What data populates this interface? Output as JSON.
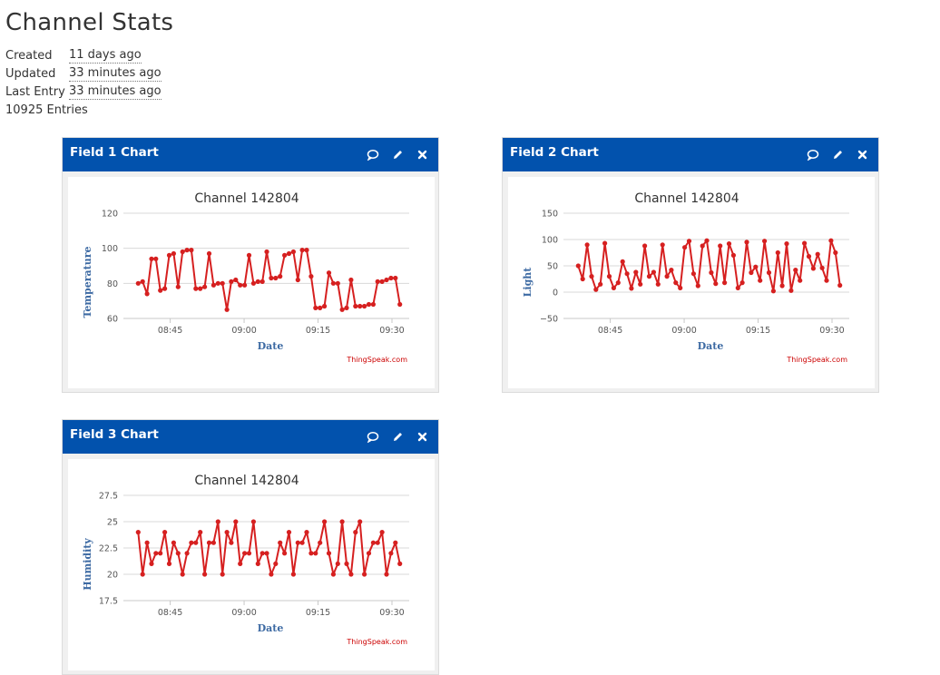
{
  "page": {
    "title": "Channel Stats",
    "created_label": "Created",
    "created_value": "11 days ago",
    "updated_label": "Updated",
    "updated_value": "33 minutes ago",
    "last_entry_label": "Last Entry",
    "last_entry_value": "33 minutes ago",
    "entries": "10925 Entries"
  },
  "colors": {
    "header": "#0252ad",
    "series": "#d62020",
    "credit": "#cc0000",
    "axis_title": "#3d6aa3"
  },
  "icons": [
    "comment-icon",
    "pencil-icon",
    "close-icon"
  ],
  "chart_data": [
    {
      "type": "line",
      "panel_title": "Field 1 Chart",
      "title": "Channel 142804",
      "xlabel": "Date",
      "ylabel": "Temperature",
      "credit": "ThingSpeak.com",
      "ylim": [
        60,
        120
      ],
      "yticks": [
        60,
        80,
        100,
        120
      ],
      "ytick_labels": [
        "60",
        "80",
        "100",
        "120"
      ],
      "xlim_minutes": [
        515.5,
        573.5
      ],
      "xticks": [
        525,
        540,
        555,
        570
      ],
      "xtick_labels": [
        "08:45",
        "09:00",
        "09:15",
        "09:30"
      ],
      "values": [
        80,
        81,
        74,
        94,
        94,
        76,
        77,
        96,
        97,
        78,
        98,
        99,
        99,
        77,
        77,
        78,
        97,
        79,
        80,
        80,
        65,
        81,
        82,
        79,
        79,
        96,
        80,
        81,
        81,
        98,
        83,
        83,
        84,
        96,
        97,
        98,
        82,
        99,
        99,
        84,
        66,
        66,
        67,
        86,
        80,
        80,
        65,
        66,
        82,
        67,
        67,
        67,
        68,
        68,
        81,
        81,
        82,
        83,
        83,
        68
      ]
    },
    {
      "type": "line",
      "panel_title": "Field 2 Chart",
      "title": "Channel 142804",
      "xlabel": "Date",
      "ylabel": "Light",
      "credit": "ThingSpeak.com",
      "ylim": [
        -50,
        150
      ],
      "yticks": [
        -50,
        0,
        50,
        100,
        150
      ],
      "ytick_labels": [
        "−50",
        "0",
        "50",
        "100",
        "150"
      ],
      "xlim_minutes": [
        515.5,
        573.5
      ],
      "xticks": [
        525,
        540,
        555,
        570
      ],
      "xtick_labels": [
        "08:45",
        "09:00",
        "09:15",
        "09:30"
      ],
      "values": [
        50,
        25,
        90,
        30,
        5,
        15,
        93,
        30,
        8,
        18,
        58,
        35,
        7,
        38,
        15,
        88,
        30,
        38,
        15,
        90,
        30,
        42,
        18,
        8,
        85,
        97,
        35,
        12,
        88,
        98,
        37,
        16,
        88,
        18,
        92,
        70,
        8,
        18,
        95,
        37,
        48,
        22,
        97,
        37,
        2,
        75,
        12,
        92,
        3,
        42,
        22,
        93,
        68,
        45,
        72,
        46,
        22,
        98,
        75,
        13
      ]
    },
    {
      "type": "line",
      "panel_title": "Field 3 Chart",
      "title": "Channel 142804",
      "xlabel": "Date",
      "ylabel": "Humidity",
      "credit": "ThingSpeak.com",
      "ylim": [
        17.5,
        27.5
      ],
      "yticks": [
        17.5,
        20,
        22.5,
        25,
        27.5
      ],
      "ytick_labels": [
        "17.5",
        "20",
        "22.5",
        "25",
        "27.5"
      ],
      "xlim_minutes": [
        515.5,
        573.5
      ],
      "xticks": [
        525,
        540,
        555,
        570
      ],
      "xtick_labels": [
        "08:45",
        "09:00",
        "09:15",
        "09:30"
      ],
      "values": [
        24,
        20,
        23,
        21,
        22,
        22,
        24,
        21,
        23,
        22,
        20,
        22,
        23,
        23,
        24,
        20,
        23,
        23,
        25,
        20,
        24,
        23,
        25,
        21,
        22,
        22,
        25,
        21,
        22,
        22,
        20,
        21,
        23,
        22,
        24,
        20,
        23,
        23,
        24,
        22,
        22,
        23,
        25,
        22,
        20,
        21,
        25,
        21,
        20,
        24,
        25,
        20,
        22,
        23,
        23,
        24,
        20,
        22,
        23,
        21
      ]
    }
  ]
}
